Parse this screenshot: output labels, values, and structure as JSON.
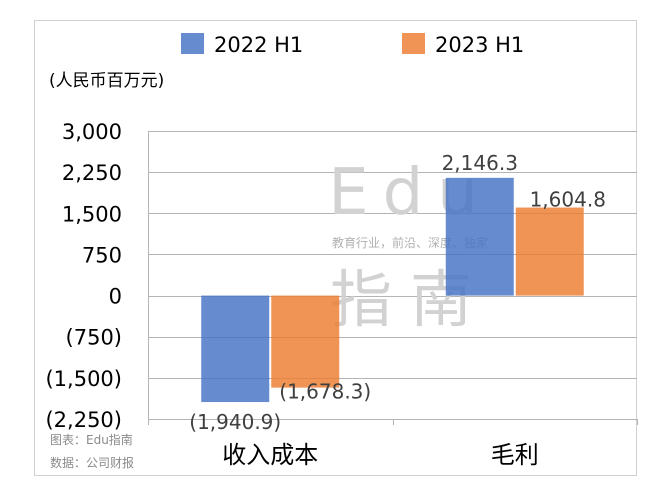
{
  "chart_data": {
    "type": "bar",
    "unit_label": "(人民币百万元)",
    "categories": [
      "收入成本",
      "毛利"
    ],
    "series": [
      {
        "name": "2022 H1",
        "color": "#4472C4",
        "values": [
          -1940.9,
          2146.3
        ],
        "labels": [
          "(1,940.9)",
          "2,146.3"
        ]
      },
      {
        "name": "2023 H1",
        "color": "#ED7D31",
        "values": [
          -1678.3,
          1604.8
        ],
        "labels": [
          "(1,678.3)",
          "1,604.8"
        ]
      }
    ],
    "yticks": [
      3000,
      2250,
      1500,
      750,
      0,
      -750,
      -1500,
      -2250
    ],
    "ytick_labels": [
      "3,000",
      "2,250",
      "1,500",
      "750",
      "0",
      "(750)",
      "(1,500)",
      "(2,250)"
    ],
    "ylim": [
      -2250,
      3000
    ],
    "grid": true,
    "legend_position": "top"
  },
  "watermark": {
    "line1": "Edu",
    "line2": "教育行业，前沿、深度、独家",
    "line3": "指南"
  },
  "footer": {
    "chart_credit": "图表：Edu指南",
    "data_source": "数据：公司财报"
  }
}
